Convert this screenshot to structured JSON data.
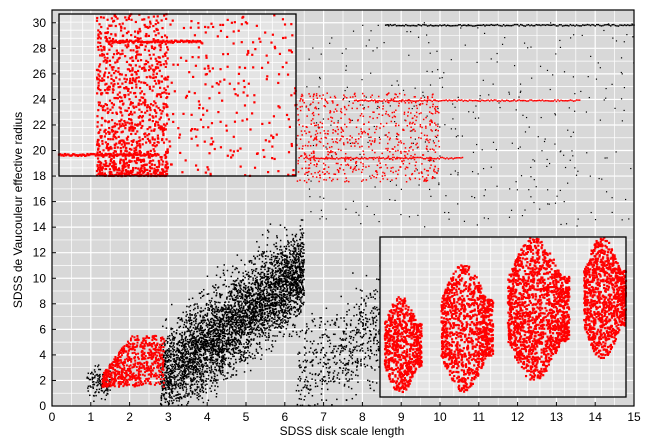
{
  "chart_data": {
    "type": "scatter",
    "xlabel": "SDSS disk scale length",
    "ylabel": "SDSS de Vaucouleur effective radius",
    "xlim": [
      0,
      15
    ],
    "ylim": [
      0,
      31
    ],
    "xticks": [
      "0",
      "1",
      "2",
      "3",
      "4",
      "5",
      "6",
      "7",
      "8",
      "9",
      "10",
      "11",
      "12",
      "13",
      "14",
      "15"
    ],
    "yticks": [
      "0",
      "2",
      "4",
      "6",
      "8",
      "10",
      "12",
      "14",
      "16",
      "18",
      "20",
      "22",
      "24",
      "26",
      "28",
      "30"
    ],
    "grid": true,
    "background_color": "#d8d8d8",
    "series": [
      {
        "color": "#000000",
        "clusters": [
          {
            "x_range": [
              0.9,
              1.5
            ],
            "y_center_slope": [
              1.7,
              0.3
            ],
            "y_spread": 0.6,
            "count": 120
          },
          {
            "x_range": [
              2.8,
              6.5
            ],
            "y_center_slope": [
              2.0,
              2.4
            ],
            "y_spread": 1.8,
            "count": 4200
          },
          {
            "x_range": [
              6.3,
              9.0
            ],
            "y_center_slope": [
              2.5,
              2.2
            ],
            "y_spread": 2.0,
            "count": 700
          },
          {
            "x_range": [
              6.5,
              15.0
            ],
            "y_range": [
              14.0,
              30.0
            ],
            "count": 350,
            "sparse": true
          }
        ],
        "lines": [
          {
            "x_range": [
              8.6,
              15.0
            ],
            "y": 29.8
          }
        ]
      },
      {
        "color": "#ff0000",
        "blocks": [
          {
            "x_range": [
              1.3,
              2.9
            ],
            "y_range": [
              1.5,
              5.5
            ],
            "count": 650,
            "trim_upper_left": true
          }
        ],
        "clusters": [
          {
            "x_range": [
              6.3,
              10.0
            ],
            "y_range": [
              17.5,
              24.5
            ],
            "count": 700
          }
        ],
        "lines": [
          {
            "x_range": [
              6.5,
              10.6
            ],
            "y": 19.4
          },
          {
            "x_range": [
              7.8,
              13.6
            ],
            "y": 23.9
          }
        ]
      }
    ],
    "insets": [
      {
        "position": "upper-left",
        "color": "#ff0000",
        "xlim": [
          0,
          10
        ],
        "ylim": [
          0,
          10
        ],
        "grid": true,
        "clusters": [
          {
            "x_range": [
              1.6,
              4.6
            ],
            "y_range": [
              0.0,
              10.0
            ],
            "count": 1100,
            "dense_bottom": true
          },
          {
            "x_range": [
              4.6,
              10.0
            ],
            "y_range": [
              0.0,
              10.0
            ],
            "count": 230
          }
        ],
        "lines": [
          {
            "x_range": [
              0.0,
              4.2
            ],
            "y": 1.3
          },
          {
            "x_range": [
              2.0,
              6.0
            ],
            "y": 8.3
          }
        ]
      },
      {
        "position": "lower-right",
        "color": "#ff0000",
        "xlim": [
          0,
          10
        ],
        "ylim": [
          0,
          10
        ],
        "grid": true,
        "lumps": [
          {
            "x_range": [
              0.2,
              1.7
            ],
            "y_range": [
              0.2,
              6.3
            ],
            "count": 700
          },
          {
            "x_range": [
              2.5,
              4.6
            ],
            "y_range": [
              0.3,
              8.3
            ],
            "count": 1100
          },
          {
            "x_range": [
              5.2,
              7.7
            ],
            "y_range": [
              1.0,
              10.0
            ],
            "count": 1500
          },
          {
            "x_range": [
              8.3,
              10.0
            ],
            "y_range": [
              2.3,
              10.0
            ],
            "count": 1000
          }
        ]
      }
    ]
  }
}
